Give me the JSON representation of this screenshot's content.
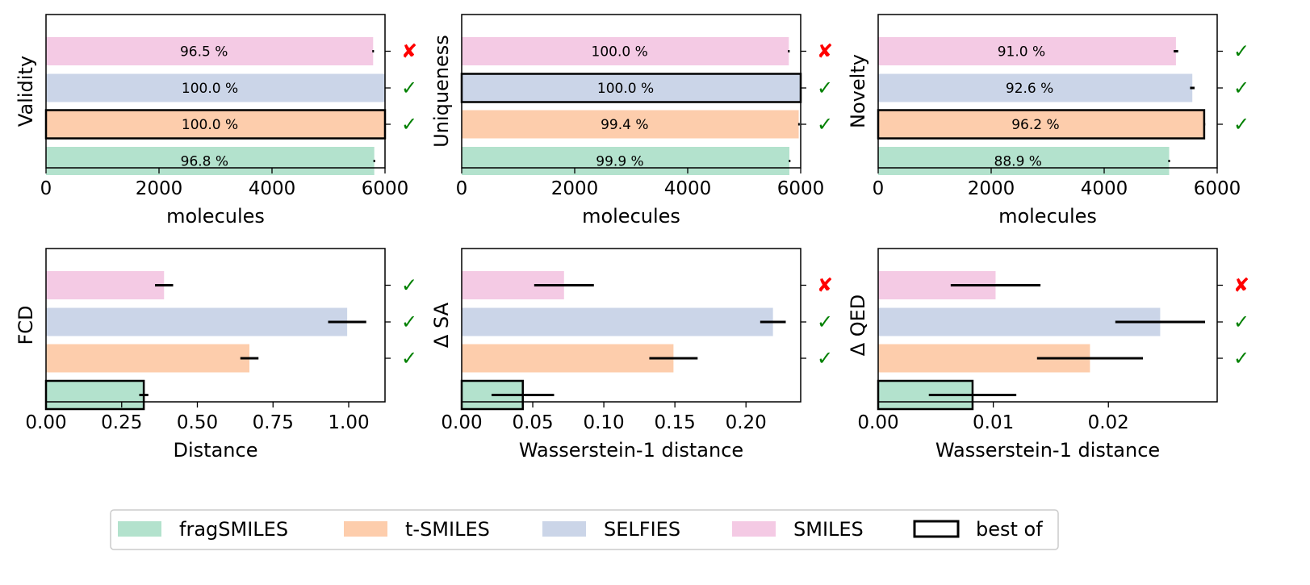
{
  "colors": {
    "fragSMILES": "#b3e2cd",
    "t-SMILES": "#fdcdac",
    "SELFIES": "#cbd5e8",
    "SMILES": "#f4cae4",
    "check": "#008000",
    "cross": "#ff0000"
  },
  "legend": {
    "items": [
      {
        "label": "fragSMILES",
        "color": "#b3e2cd"
      },
      {
        "label": "t-SMILES",
        "color": "#fdcdac"
      },
      {
        "label": "SELFIES",
        "color": "#cbd5e8"
      },
      {
        "label": "SMILES",
        "color": "#f4cae4"
      }
    ],
    "best_label": "best of"
  },
  "chart_data": [
    {
      "id": "validity",
      "type": "bar",
      "orientation": "horizontal",
      "ylabel": "Validity",
      "xlabel": "molecules",
      "xlim": [
        0,
        6000
      ],
      "xticks": [
        0,
        2000,
        4000,
        6000
      ],
      "xtick_labels": [
        "0",
        "2000",
        "4000",
        "6000"
      ],
      "bar_order": [
        "SMILES",
        "SELFIES",
        "t-SMILES",
        "fragSMILES"
      ],
      "values": [
        5790,
        6000,
        6000,
        5810
      ],
      "errors": [
        15,
        0,
        0,
        15
      ],
      "labels": [
        "96.5 %",
        "100.0 %",
        "100.0 %",
        "96.8 %"
      ],
      "best_index": 2,
      "marks": [
        "✘",
        "✓",
        "✓",
        ""
      ]
    },
    {
      "id": "uniqueness",
      "type": "bar",
      "orientation": "horizontal",
      "ylabel": "Uniqueness",
      "xlabel": "molecules",
      "xlim": [
        0,
        6000
      ],
      "xticks": [
        0,
        2000,
        4000,
        6000
      ],
      "xtick_labels": [
        "0",
        "2000",
        "4000",
        "6000"
      ],
      "bar_order": [
        "SMILES",
        "SELFIES",
        "t-SMILES",
        "fragSMILES"
      ],
      "values": [
        5790,
        6000,
        5965,
        5800
      ],
      "errors": [
        15,
        0,
        10,
        10
      ],
      "labels": [
        "100.0 %",
        "100.0 %",
        "99.4 %",
        "99.9 %"
      ],
      "best_index": 1,
      "marks": [
        "✘",
        "✓",
        "✓",
        ""
      ]
    },
    {
      "id": "novelty",
      "type": "bar",
      "orientation": "horizontal",
      "ylabel": "Novelty",
      "xlabel": "molecules",
      "xlim": [
        0,
        6000
      ],
      "xticks": [
        0,
        2000,
        4000,
        6000
      ],
      "xtick_labels": [
        "0",
        "2000",
        "4000",
        "6000"
      ],
      "bar_order": [
        "SMILES",
        "SELFIES",
        "t-SMILES",
        "fragSMILES"
      ],
      "values": [
        5270,
        5560,
        5770,
        5150
      ],
      "errors": [
        40,
        40,
        10,
        15
      ],
      "labels": [
        "91.0 %",
        "92.6 %",
        "96.2 %",
        "88.9 %"
      ],
      "best_index": 2,
      "marks": [
        "✓",
        "✓",
        "✓",
        ""
      ]
    },
    {
      "id": "fcd",
      "type": "bar",
      "orientation": "horizontal",
      "ylabel": "FCD",
      "xlabel": "Distance",
      "xlim": [
        0,
        1.12
      ],
      "xticks": [
        0,
        0.25,
        0.5,
        0.75,
        1.0
      ],
      "xtick_labels": [
        "0.00",
        "0.25",
        "0.50",
        "0.75",
        "1.00"
      ],
      "bar_order": [
        "SMILES",
        "SELFIES",
        "t-SMILES",
        "fragSMILES"
      ],
      "values": [
        0.39,
        0.995,
        0.672,
        0.323
      ],
      "errors": [
        0.03,
        0.063,
        0.03,
        0.015
      ],
      "labels": [
        "",
        "",
        "",
        ""
      ],
      "best_index": 3,
      "marks": [
        "✓",
        "✓",
        "✓",
        ""
      ]
    },
    {
      "id": "delta_sa",
      "type": "bar",
      "orientation": "horizontal",
      "ylabel": "Δ SA",
      "xlabel": "Wasserstein-1 distance",
      "xlim": [
        0,
        0.2385
      ],
      "xticks": [
        0,
        0.05,
        0.1,
        0.15,
        0.2
      ],
      "xtick_labels": [
        "0.00",
        "0.05",
        "0.10",
        "0.15",
        "0.20"
      ],
      "bar_order": [
        "SMILES",
        "SELFIES",
        "t-SMILES",
        "fragSMILES"
      ],
      "values": [
        0.072,
        0.219,
        0.149,
        0.043
      ],
      "errors": [
        0.021,
        0.009,
        0.017,
        0.022
      ],
      "labels": [
        "",
        "",
        "",
        ""
      ],
      "best_index": 3,
      "marks": [
        "✘",
        "✓",
        "✓",
        ""
      ]
    },
    {
      "id": "delta_qed",
      "type": "bar",
      "orientation": "horizontal",
      "ylabel": "Δ QED",
      "xlabel": "Wasserstein-1 distance",
      "xlim": [
        0,
        0.02945
      ],
      "xticks": [
        0,
        0.01,
        0.02
      ],
      "xtick_labels": [
        "0.00",
        "0.01",
        "0.02"
      ],
      "bar_order": [
        "SMILES",
        "SELFIES",
        "t-SMILES",
        "fragSMILES"
      ],
      "values": [
        0.0102,
        0.0245,
        0.0184,
        0.0082
      ],
      "errors": [
        0.0039,
        0.0039,
        0.0046,
        0.0038
      ],
      "labels": [
        "",
        "",
        "",
        ""
      ],
      "best_index": 3,
      "marks": [
        "✘",
        "✓",
        "✓",
        ""
      ]
    }
  ]
}
